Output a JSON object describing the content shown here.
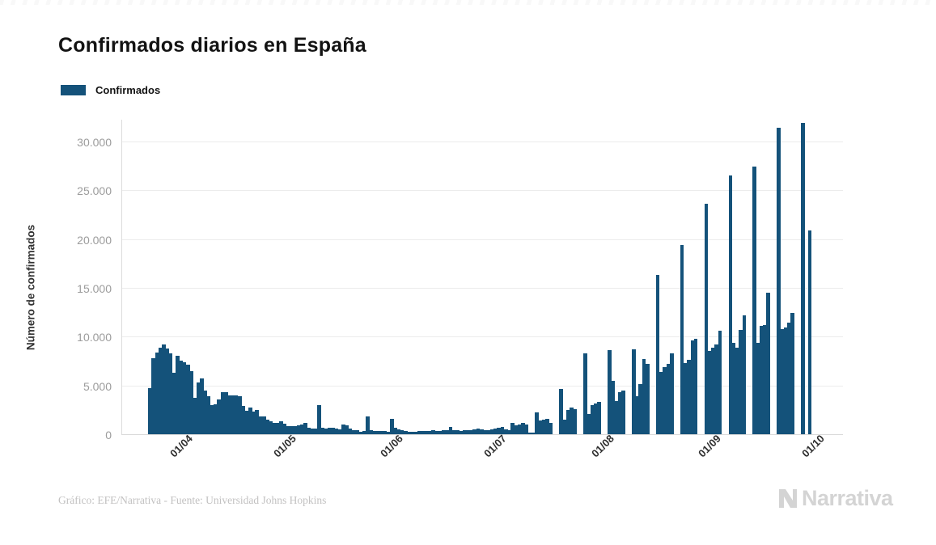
{
  "header": {
    "title": "Confirmados diarios en España"
  },
  "legend": {
    "items": [
      {
        "label": "Confirmados",
        "color": "#14527a"
      }
    ]
  },
  "chart_data": {
    "type": "bar",
    "title": "Confirmados diarios en España",
    "series_name": "Confirmados",
    "bar_color": "#14527a",
    "xlabel": "",
    "ylabel": "Número de confirmados",
    "grid": true,
    "legend_position": "top-left",
    "ylim": [
      0,
      32300
    ],
    "yticks": [
      0,
      5000,
      10000,
      15000,
      20000,
      25000,
      30000
    ],
    "ytick_labels": [
      "0",
      "5.000",
      "10.000",
      "15.000",
      "20.000",
      "25.000",
      "30.000"
    ],
    "x_period": "daily values, 23/03 to 30/09",
    "xticks": [
      {
        "label": "01/04",
        "index": 9
      },
      {
        "label": "01/05",
        "index": 39
      },
      {
        "label": "01/06",
        "index": 70
      },
      {
        "label": "01/07",
        "index": 100
      },
      {
        "label": "01/08",
        "index": 131
      },
      {
        "label": "01/09",
        "index": 162
      },
      {
        "label": "01/10",
        "index": 192
      }
    ],
    "values": [
      4700,
      7800,
      8400,
      8900,
      9200,
      8800,
      8300,
      6300,
      8000,
      7500,
      7400,
      7100,
      6500,
      3700,
      5300,
      5700,
      4500,
      3900,
      3000,
      3100,
      3600,
      4300,
      4300,
      4000,
      4000,
      4000,
      3900,
      2900,
      2400,
      2700,
      2300,
      2500,
      1800,
      1800,
      1500,
      1350,
      1200,
      1200,
      1350,
      1100,
      800,
      800,
      850,
      950,
      1000,
      1200,
      670,
      600,
      550,
      3000,
      700,
      550,
      700,
      650,
      550,
      500,
      1000,
      900,
      600,
      450,
      400,
      250,
      300,
      1800,
      400,
      300,
      350,
      300,
      300,
      250,
      1600,
      650,
      500,
      400,
      300,
      250,
      250,
      250,
      300,
      300,
      300,
      350,
      450,
      350,
      350,
      400,
      400,
      750,
      400,
      400,
      350,
      450,
      450,
      450,
      500,
      550,
      500,
      450,
      400,
      500,
      600,
      700,
      750,
      500,
      450,
      1200,
      900,
      1000,
      1200,
      1000,
      150,
      150,
      2200,
      1400,
      1500,
      1600,
      1200,
      0,
      0,
      4650,
      1500,
      2500,
      2750,
      2600,
      0,
      0,
      8300,
      2100,
      3000,
      3150,
      3300,
      0,
      0,
      8600,
      5500,
      3400,
      4300,
      4500,
      0,
      0,
      8700,
      3900,
      5100,
      7700,
      7200,
      0,
      0,
      16300,
      6400,
      6900,
      7200,
      8300,
      0,
      0,
      19400,
      7300,
      7600,
      9600,
      9800,
      0,
      0,
      23600,
      8500,
      8900,
      9200,
      10600,
      0,
      0,
      26500,
      9400,
      8900,
      10700,
      12200,
      0,
      0,
      27400,
      9400,
      11100,
      11200,
      14500,
      0,
      0,
      31400,
      10800,
      10900,
      11400,
      12400,
      0,
      0,
      31900,
      0,
      20900
    ]
  },
  "footer": {
    "credit": "Gráfico: EFE/Narrativa - Fuente: Universidad Johns Hopkins",
    "logo_text": "Narrativa"
  }
}
